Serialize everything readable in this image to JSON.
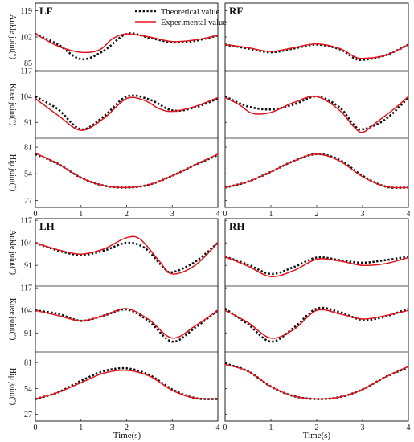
{
  "legend": {
    "theoretical_label": "Theoretical value",
    "experimental_label": "Experimental value",
    "theoretical_color": "#111111",
    "experimental_color": "#e0161e"
  },
  "chart_data": {
    "type": "line",
    "xlabel": "Time(s)",
    "xlim": [
      0,
      4
    ],
    "xticks": [
      "0",
      "1",
      "2",
      "3",
      "4"
    ],
    "rows": [
      {
        "ylabel": "Ankle joint(°)",
        "yticks": [
          "85",
          "102",
          "119"
        ],
        "ylim": [
          80,
          124
        ]
      },
      {
        "ylabel": "Knee joint(°)",
        "yticks": [
          "91",
          "104",
          "117"
        ],
        "ylim": [
          83,
          117
        ]
      },
      {
        "ylabel": "Hip joint(°)",
        "yticks": [
          "27",
          "54",
          "81"
        ],
        "ylim": [
          20,
          90
        ]
      },
      {
        "ylabel": "Ankle joint(°)",
        "yticks": [
          "91",
          "104",
          "117"
        ],
        "ylim": [
          79,
          118
        ]
      },
      {
        "ylabel": "Knee joint(°)",
        "yticks": [
          "91",
          "104",
          "117"
        ],
        "ylim": [
          80,
          118
        ]
      },
      {
        "ylabel": "Hip joint(°)",
        "yticks": [
          "27",
          "54",
          "81"
        ],
        "ylim": [
          20,
          92
        ]
      }
    ],
    "panels": [
      {
        "leg": "LF",
        "joint": "Ankle",
        "row": 0,
        "col": 0,
        "theoretical": [
          [
            0,
            104
          ],
          [
            0.5,
            97
          ],
          [
            1,
            87.5
          ],
          [
            1.5,
            93
          ],
          [
            2,
            104
          ],
          [
            2.5,
            101.5
          ],
          [
            3,
            98.5
          ],
          [
            3.5,
            99.5
          ],
          [
            4,
            103
          ]
        ],
        "experimental": [
          [
            0,
            104
          ],
          [
            0.5,
            96
          ],
          [
            1,
            92
          ],
          [
            1.4,
            93.5
          ],
          [
            1.7,
            101
          ],
          [
            2,
            104
          ],
          [
            2.5,
            102
          ],
          [
            3,
            99
          ],
          [
            3.5,
            100
          ],
          [
            4,
            103
          ]
        ]
      },
      {
        "leg": "LF",
        "joint": "Knee",
        "row": 1,
        "col": 0,
        "theoretical": [
          [
            0,
            104
          ],
          [
            0.5,
            97.5
          ],
          [
            1,
            87.5
          ],
          [
            1.5,
            94
          ],
          [
            2,
            104
          ],
          [
            2.5,
            102.5
          ],
          [
            3,
            97
          ],
          [
            3.5,
            98.5
          ],
          [
            4,
            103
          ]
        ],
        "experimental": [
          [
            0,
            103
          ],
          [
            0.5,
            94.5
          ],
          [
            1,
            87
          ],
          [
            1.5,
            93
          ],
          [
            2,
            103
          ],
          [
            2.4,
            102
          ],
          [
            2.7,
            98
          ],
          [
            3,
            96.5
          ],
          [
            3.5,
            99
          ],
          [
            4,
            103.5
          ]
        ]
      },
      {
        "leg": "LF",
        "joint": "Hip",
        "row": 2,
        "col": 0,
        "theoretical": [
          [
            0,
            74
          ],
          [
            0.5,
            64
          ],
          [
            1,
            50
          ],
          [
            1.5,
            42
          ],
          [
            2,
            40
          ],
          [
            2.5,
            43
          ],
          [
            3,
            52
          ],
          [
            3.5,
            63
          ],
          [
            4,
            73
          ]
        ],
        "experimental": [
          [
            0,
            75
          ],
          [
            0.5,
            64
          ],
          [
            1,
            50
          ],
          [
            1.5,
            42
          ],
          [
            2,
            40
          ],
          [
            2.5,
            43
          ],
          [
            3,
            52
          ],
          [
            3.5,
            63
          ],
          [
            4,
            74
          ]
        ]
      },
      {
        "leg": "RF",
        "joint": "Ankle",
        "row": 0,
        "col": 1,
        "theoretical": [
          [
            0,
            97
          ],
          [
            0.5,
            94.5
          ],
          [
            1,
            92
          ],
          [
            1.5,
            94.5
          ],
          [
            2,
            97
          ],
          [
            2.5,
            94
          ],
          [
            2.8,
            88.5
          ],
          [
            3,
            87
          ],
          [
            3.5,
            90
          ],
          [
            4,
            97
          ]
        ],
        "experimental": [
          [
            0,
            97
          ],
          [
            0.5,
            95
          ],
          [
            1,
            92.5
          ],
          [
            1.5,
            95
          ],
          [
            2,
            97.5
          ],
          [
            2.5,
            94.5
          ],
          [
            2.8,
            89.5
          ],
          [
            3,
            88
          ],
          [
            3.5,
            90
          ],
          [
            4,
            97
          ]
        ]
      },
      {
        "leg": "RF",
        "joint": "Knee",
        "row": 1,
        "col": 1,
        "theoretical": [
          [
            0,
            104
          ],
          [
            0.5,
            99
          ],
          [
            1,
            97.5
          ],
          [
            1.5,
            100
          ],
          [
            2,
            104
          ],
          [
            2.5,
            98.5
          ],
          [
            2.8,
            90
          ],
          [
            3,
            87.5
          ],
          [
            3.5,
            92.5
          ],
          [
            4,
            103.5
          ]
        ],
        "experimental": [
          [
            0,
            103.5
          ],
          [
            0.3,
            100
          ],
          [
            0.6,
            95.5
          ],
          [
            1,
            96
          ],
          [
            1.5,
            101
          ],
          [
            2,
            104
          ],
          [
            2.5,
            97
          ],
          [
            2.8,
            89
          ],
          [
            3,
            86
          ],
          [
            3.3,
            91
          ],
          [
            3.7,
            98
          ],
          [
            4,
            104
          ]
        ]
      },
      {
        "leg": "RF",
        "joint": "Hip",
        "row": 2,
        "col": 1,
        "theoretical": [
          [
            0,
            40
          ],
          [
            0.5,
            46
          ],
          [
            1,
            56
          ],
          [
            1.5,
            67
          ],
          [
            2,
            74
          ],
          [
            2.5,
            68
          ],
          [
            3,
            52
          ],
          [
            3.5,
            41
          ],
          [
            4,
            40
          ]
        ],
        "experimental": [
          [
            0,
            40
          ],
          [
            0.5,
            46
          ],
          [
            1,
            56
          ],
          [
            1.5,
            67
          ],
          [
            2,
            74
          ],
          [
            2.5,
            67
          ],
          [
            3,
            51
          ],
          [
            3.5,
            41
          ],
          [
            4,
            40
          ]
        ]
      },
      {
        "leg": "LH",
        "joint": "Ankle",
        "row": 3,
        "col": 0,
        "theoretical": [
          [
            0,
            104
          ],
          [
            0.5,
            99.5
          ],
          [
            1,
            97
          ],
          [
            1.5,
            99.5
          ],
          [
            2,
            104
          ],
          [
            2.4,
            101
          ],
          [
            2.8,
            90
          ],
          [
            3,
            87
          ],
          [
            3.5,
            93
          ],
          [
            4,
            104
          ]
        ],
        "experimental": [
          [
            0,
            104
          ],
          [
            0.5,
            100
          ],
          [
            1,
            97.5
          ],
          [
            1.5,
            100.5
          ],
          [
            2,
            107
          ],
          [
            2.3,
            106
          ],
          [
            2.7,
            94
          ],
          [
            3,
            86
          ],
          [
            3.5,
            91
          ],
          [
            4,
            104
          ]
        ]
      },
      {
        "leg": "LH",
        "joint": "Knee",
        "row": 4,
        "col": 0,
        "theoretical": [
          [
            0,
            104
          ],
          [
            0.5,
            102
          ],
          [
            1,
            98
          ],
          [
            1.5,
            101
          ],
          [
            2,
            104.5
          ],
          [
            2.5,
            97.5
          ],
          [
            3,
            86
          ],
          [
            3.5,
            94
          ],
          [
            4,
            104
          ]
        ],
        "experimental": [
          [
            0,
            104
          ],
          [
            0.5,
            101
          ],
          [
            1,
            98
          ],
          [
            1.5,
            101
          ],
          [
            2,
            105
          ],
          [
            2.5,
            98.5
          ],
          [
            3,
            88
          ],
          [
            3.5,
            95
          ],
          [
            4,
            104
          ]
        ]
      },
      {
        "leg": "LH",
        "joint": "Hip",
        "row": 5,
        "col": 0,
        "theoretical": [
          [
            0,
            43
          ],
          [
            0.5,
            50
          ],
          [
            1,
            62
          ],
          [
            1.5,
            72
          ],
          [
            2,
            75
          ],
          [
            2.5,
            68
          ],
          [
            3,
            53
          ],
          [
            3.5,
            44
          ],
          [
            4,
            43
          ]
        ],
        "experimental": [
          [
            0,
            43
          ],
          [
            0.5,
            50
          ],
          [
            1,
            60
          ],
          [
            1.5,
            70
          ],
          [
            2,
            73
          ],
          [
            2.5,
            67
          ],
          [
            3,
            52
          ],
          [
            3.5,
            44
          ],
          [
            4,
            43
          ]
        ]
      },
      {
        "leg": "RH",
        "joint": "Ankle",
        "row": 3,
        "col": 1,
        "theoretical": [
          [
            0,
            96
          ],
          [
            0.5,
            91.5
          ],
          [
            1,
            86
          ],
          [
            1.5,
            90
          ],
          [
            2,
            95.5
          ],
          [
            2.5,
            94
          ],
          [
            3,
            92.5
          ],
          [
            3.5,
            94
          ],
          [
            4,
            96
          ]
        ],
        "experimental": [
          [
            0,
            96
          ],
          [
            0.5,
            90.5
          ],
          [
            1,
            84.5
          ],
          [
            1.5,
            88
          ],
          [
            2,
            94.5
          ],
          [
            2.5,
            93.5
          ],
          [
            3,
            91
          ],
          [
            3.5,
            92
          ],
          [
            4,
            95.5
          ]
        ]
      },
      {
        "leg": "RH",
        "joint": "Knee",
        "row": 4,
        "col": 1,
        "theoretical": [
          [
            0,
            105
          ],
          [
            0.5,
            96
          ],
          [
            1,
            86
          ],
          [
            1.5,
            94
          ],
          [
            2,
            105
          ],
          [
            2.5,
            103
          ],
          [
            3,
            98.5
          ],
          [
            3.5,
            100.5
          ],
          [
            4,
            105
          ]
        ],
        "experimental": [
          [
            0,
            104
          ],
          [
            0.5,
            97
          ],
          [
            1,
            88
          ],
          [
            1.5,
            93
          ],
          [
            2,
            104
          ],
          [
            2.5,
            102
          ],
          [
            3,
            99
          ],
          [
            3.5,
            101
          ],
          [
            4,
            104
          ]
        ]
      },
      {
        "leg": "RH",
        "joint": "Hip",
        "row": 5,
        "col": 1,
        "theoretical": [
          [
            0,
            80
          ],
          [
            0.5,
            72
          ],
          [
            1,
            56
          ],
          [
            1.5,
            46
          ],
          [
            2,
            43
          ],
          [
            2.5,
            45
          ],
          [
            3,
            53
          ],
          [
            3.5,
            66
          ],
          [
            4,
            76
          ]
        ],
        "experimental": [
          [
            0,
            79
          ],
          [
            0.5,
            72
          ],
          [
            1,
            56
          ],
          [
            1.5,
            46
          ],
          [
            2,
            43
          ],
          [
            2.5,
            45
          ],
          [
            3,
            53
          ],
          [
            3.5,
            66
          ],
          [
            4,
            77
          ]
        ]
      }
    ]
  }
}
